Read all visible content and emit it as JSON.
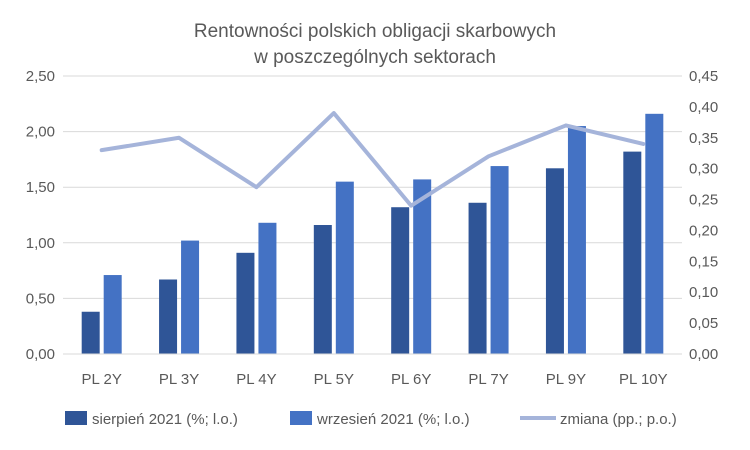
{
  "chart_data": {
    "type": "bar",
    "title_lines": [
      "Rentowności polskich obligacji skarbowych",
      "w poszczególnych sektorach"
    ],
    "categories": [
      "PL 2Y",
      "PL 3Y",
      "PL 4Y",
      "PL 5Y",
      "PL 6Y",
      "PL 7Y",
      "PL 9Y",
      "PL 10Y"
    ],
    "series": [
      {
        "name": "sierpień 2021 (%; l.o.)",
        "type": "bar",
        "axis": "left",
        "color": "#2F5597",
        "values": [
          0.38,
          0.67,
          0.91,
          1.16,
          1.32,
          1.36,
          1.67,
          1.82
        ]
      },
      {
        "name": "wrzesień 2021 (%; l.o.)",
        "type": "bar",
        "axis": "left",
        "color": "#4472C4",
        "values": [
          0.71,
          1.02,
          1.18,
          1.55,
          1.57,
          1.69,
          2.05,
          2.16
        ]
      },
      {
        "name": "zmiana (pp.; p.o.)",
        "type": "line",
        "axis": "right",
        "color": "#A5B4DA",
        "values": [
          0.33,
          0.35,
          0.27,
          0.39,
          0.24,
          0.32,
          0.37,
          0.34
        ]
      }
    ],
    "y_left": {
      "min": 0,
      "max": 2.5,
      "ticks": [
        "0,00",
        "0,50",
        "1,00",
        "1,50",
        "2,00",
        "2,50"
      ]
    },
    "y_right": {
      "min": 0,
      "max": 0.45,
      "ticks": [
        "0,00",
        "0,05",
        "0,10",
        "0,15",
        "0,20",
        "0,25",
        "0,30",
        "0,35",
        "0,40",
        "0,45"
      ]
    },
    "grid": true,
    "legend_position": "bottom"
  }
}
